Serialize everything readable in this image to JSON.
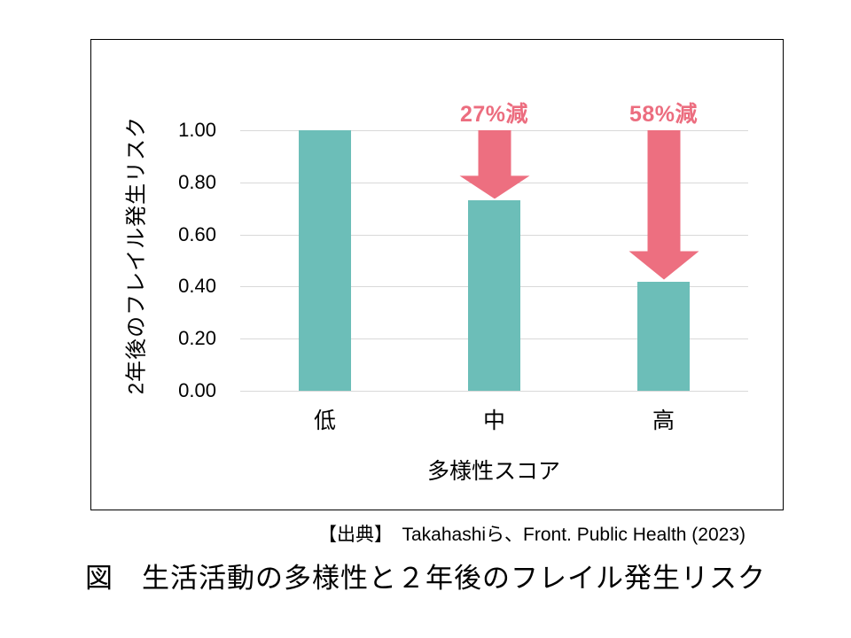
{
  "source_line": "【出典】　Takahashiら、Front. Public Health (2023)",
  "caption": "図　生活活動の多様性と２年後のフレイル発生リスク",
  "colors": {
    "bar": "#6CBEB8",
    "arrow": "#ED6F80",
    "annotation_text": "#EC6D7F",
    "gridline": "#D9D9D9",
    "axis_text": "#000000",
    "frame_border": "#000000"
  },
  "chart_data": {
    "type": "bar",
    "title": "",
    "categories": [
      "低",
      "中",
      "高"
    ],
    "values": [
      1.0,
      0.73,
      0.42
    ],
    "xlabel": "多様性スコア",
    "ylabel": "2年後のフレイル発生リスク",
    "ylim": [
      0,
      1.0
    ],
    "yticks": [
      0.0,
      0.2,
      0.4,
      0.6,
      0.8,
      1.0
    ],
    "ytick_labels": [
      "0.00",
      "0.20",
      "0.40",
      "0.60",
      "0.80",
      "1.00"
    ],
    "grid": true,
    "legend": "none",
    "annotations": [
      {
        "label": "27%減",
        "category": "中",
        "from": 1.0,
        "to": 0.73
      },
      {
        "label": "58%減",
        "category": "高",
        "from": 1.0,
        "to": 0.42
      }
    ]
  }
}
